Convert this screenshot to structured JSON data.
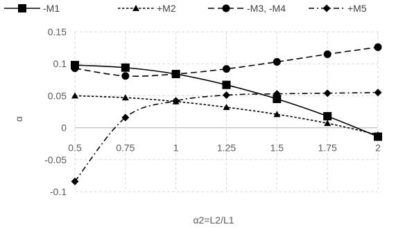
{
  "chart_data": {
    "type": "line",
    "title": "",
    "xlabel": "α2=L2/L1",
    "ylabel": "α",
    "x": [
      0.5,
      0.75,
      1,
      1.25,
      1.5,
      1.75,
      2
    ],
    "x_tick_labels": [
      "0.5",
      "0.75",
      "1",
      "1.25",
      "1.5",
      "1.75",
      "2"
    ],
    "ylim": [
      -0.1,
      0.15
    ],
    "y_ticks": [
      -0.1,
      -0.05,
      0,
      0.05,
      0.1,
      0.15
    ],
    "y_tick_labels": [
      "-0.1",
      "-0.05",
      "0",
      "0.05",
      "0.1",
      "0.15"
    ],
    "grid": "dashed",
    "legend_position": "top",
    "series": [
      {
        "name": "-M1",
        "values": [
          0.098,
          0.094,
          0.084,
          0.067,
          0.045,
          0.018,
          -0.014
        ],
        "marker": "square",
        "dash": "solid",
        "color": "#000000"
      },
      {
        "name": "+M2",
        "values": [
          0.05,
          0.047,
          0.041,
          0.032,
          0.021,
          0.007,
          -0.011
        ],
        "marker": "triangle",
        "dash": "short-dash",
        "color": "#000000"
      },
      {
        "name": "-M3, -M4",
        "values": [
          0.093,
          0.081,
          0.084,
          0.092,
          0.103,
          0.115,
          0.126
        ],
        "marker": "circle",
        "dash": "long-dash",
        "color": "#000000"
      },
      {
        "name": "+M5",
        "values": [
          -0.084,
          0.016,
          0.042,
          0.051,
          0.053,
          0.054,
          0.055
        ],
        "marker": "diamond",
        "dash": "dash-dot",
        "color": "#000000"
      }
    ]
  }
}
